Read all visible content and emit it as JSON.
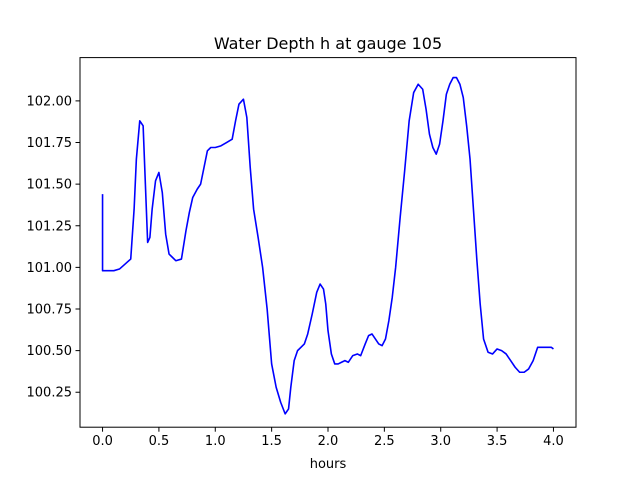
{
  "chart_data": {
    "type": "line",
    "title": "Water Depth h at gauge 105",
    "xlabel": "hours",
    "ylabel": "",
    "xlim": [
      -0.2,
      4.2
    ],
    "ylim": [
      100.04,
      102.26
    ],
    "grid": false,
    "xticks": [
      0.0,
      0.5,
      1.0,
      1.5,
      2.0,
      2.5,
      3.0,
      3.5,
      4.0
    ],
    "xtick_labels": [
      "0.0",
      "0.5",
      "1.0",
      "1.5",
      "2.0",
      "2.5",
      "3.0",
      "3.5",
      "4.0"
    ],
    "yticks": [
      100.25,
      100.5,
      100.75,
      101.0,
      101.25,
      101.5,
      101.75,
      102.0
    ],
    "ytick_labels": [
      "100.25",
      "100.50",
      "100.75",
      "101.00",
      "101.25",
      "101.50",
      "101.75",
      "102.00"
    ],
    "series": [
      {
        "color": "#0000ff",
        "x": [
          0.0,
          0.0,
          0.005,
          0.05,
          0.1,
          0.15,
          0.2,
          0.25,
          0.28,
          0.3,
          0.33,
          0.36,
          0.38,
          0.4,
          0.42,
          0.44,
          0.47,
          0.5,
          0.53,
          0.56,
          0.59,
          0.62,
          0.65,
          0.7,
          0.74,
          0.77,
          0.8,
          0.84,
          0.87,
          0.9,
          0.93,
          0.96,
          0.98,
          1.0,
          1.05,
          1.1,
          1.15,
          1.18,
          1.21,
          1.25,
          1.28,
          1.31,
          1.34,
          1.38,
          1.42,
          1.46,
          1.5,
          1.54,
          1.58,
          1.62,
          1.65,
          1.67,
          1.7,
          1.73,
          1.76,
          1.79,
          1.82,
          1.86,
          1.9,
          1.93,
          1.96,
          1.98,
          2.0,
          2.03,
          2.06,
          2.09,
          2.12,
          2.15,
          2.18,
          2.22,
          2.26,
          2.29,
          2.33,
          2.36,
          2.39,
          2.42,
          2.45,
          2.48,
          2.51,
          2.54,
          2.57,
          2.6,
          2.64,
          2.68,
          2.72,
          2.76,
          2.8,
          2.84,
          2.87,
          2.9,
          2.93,
          2.96,
          2.99,
          3.02,
          3.05,
          3.08,
          3.11,
          3.14,
          3.17,
          3.2,
          3.23,
          3.26,
          3.29,
          3.32,
          3.35,
          3.38,
          3.42,
          3.46,
          3.5,
          3.54,
          3.58,
          3.62,
          3.66,
          3.7,
          3.74,
          3.78,
          3.82,
          3.86,
          3.9,
          3.94,
          3.98,
          4.0
        ],
        "y": [
          101.44,
          100.98,
          100.98,
          100.98,
          100.98,
          100.99,
          101.02,
          101.05,
          101.35,
          101.65,
          101.88,
          101.85,
          101.5,
          101.15,
          101.18,
          101.35,
          101.52,
          101.57,
          101.45,
          101.2,
          101.08,
          101.06,
          101.04,
          101.05,
          101.22,
          101.33,
          101.42,
          101.47,
          101.5,
          101.6,
          101.7,
          101.72,
          101.72,
          101.72,
          101.73,
          101.75,
          101.77,
          101.88,
          101.98,
          102.01,
          101.9,
          101.6,
          101.35,
          101.18,
          101.0,
          100.75,
          100.42,
          100.28,
          100.19,
          100.12,
          100.15,
          100.28,
          100.44,
          100.5,
          100.52,
          100.54,
          100.6,
          100.72,
          100.85,
          100.9,
          100.87,
          100.78,
          100.62,
          100.48,
          100.42,
          100.42,
          100.43,
          100.44,
          100.43,
          100.47,
          100.48,
          100.47,
          100.54,
          100.59,
          100.6,
          100.57,
          100.54,
          100.53,
          100.57,
          100.68,
          100.82,
          101.0,
          101.3,
          101.58,
          101.88,
          102.05,
          102.1,
          102.07,
          101.95,
          101.8,
          101.72,
          101.68,
          101.74,
          101.88,
          102.04,
          102.1,
          102.14,
          102.14,
          102.1,
          102.02,
          101.85,
          101.65,
          101.35,
          101.05,
          100.78,
          100.57,
          100.49,
          100.48,
          100.51,
          100.5,
          100.48,
          100.44,
          100.4,
          100.37,
          100.37,
          100.39,
          100.44,
          100.52,
          100.52,
          100.52,
          100.52,
          100.51
        ]
      }
    ]
  }
}
